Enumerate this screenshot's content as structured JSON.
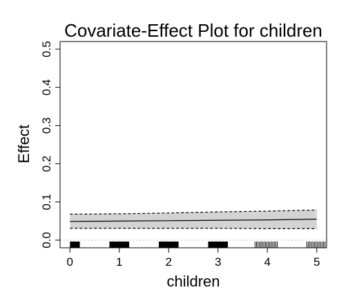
{
  "chart_data": {
    "type": "line",
    "title": "Covariate-Effect Plot for children",
    "xlabel": "children",
    "ylabel": "Effect",
    "xlim": [
      -0.2,
      5.2
    ],
    "ylim": [
      -0.02,
      0.52
    ],
    "x_ticks": [
      0,
      1,
      2,
      3,
      4,
      5
    ],
    "y_ticks": [
      0.0,
      0.1,
      0.2,
      0.3,
      0.4,
      0.5
    ],
    "x_tick_labels": [
      "0",
      "1",
      "2",
      "3",
      "4",
      "5"
    ],
    "y_tick_labels": [
      "0.0",
      "0.1",
      "0.2",
      "0.3",
      "0.4",
      "0.5"
    ],
    "grid": false,
    "reference_line": 0,
    "series": [
      {
        "role": "estimate",
        "x": [
          0,
          1,
          2,
          3,
          4,
          5
        ],
        "y": [
          0.049,
          0.05,
          0.051,
          0.052,
          0.053,
          0.055
        ]
      },
      {
        "role": "lower",
        "x": [
          0,
          1,
          2,
          3,
          4,
          5
        ],
        "y": [
          0.031,
          0.031,
          0.031,
          0.031,
          0.03,
          0.03
        ]
      },
      {
        "role": "upper",
        "x": [
          0,
          1,
          2,
          3,
          4,
          5
        ],
        "y": [
          0.068,
          0.069,
          0.071,
          0.074,
          0.076,
          0.079
        ]
      }
    ],
    "rug": [
      {
        "from": 0.0,
        "to": 0.2
      },
      {
        "from": 0.8,
        "to": 1.2
      },
      {
        "from": 1.8,
        "to": 2.2
      },
      {
        "from": 2.8,
        "to": 3.2
      },
      {
        "from": 3.75,
        "to": 4.2
      },
      {
        "from": 4.8,
        "to": 5.2
      }
    ]
  },
  "colors": {
    "band": "#d3d3d3",
    "line": "#000000",
    "reference": "#bebebe"
  }
}
